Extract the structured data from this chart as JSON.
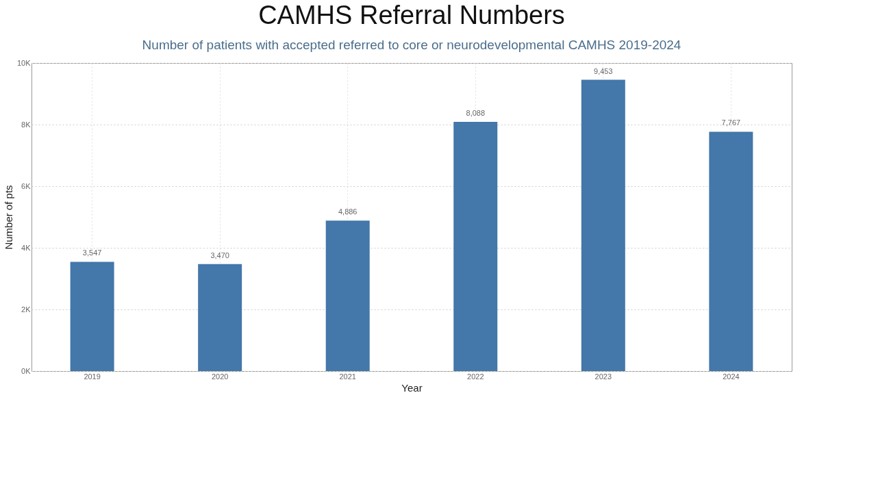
{
  "chart_data": {
    "type": "bar",
    "title": "CAMHS Referral Numbers",
    "subtitle": "Number of patients with accepted referred to core or neurodevelopmental CAMHS 2019-2024",
    "xlabel": "Year",
    "ylabel": "Number of pts",
    "categories": [
      "2019",
      "2020",
      "2021",
      "2022",
      "2023",
      "2024"
    ],
    "values": [
      3547,
      3470,
      4886,
      8088,
      9453,
      7767
    ],
    "value_labels": [
      "3,547",
      "3,470",
      "4,886",
      "8,088",
      "9,453",
      "7,767"
    ],
    "color": "#4477aa",
    "ylim": [
      0,
      10000
    ],
    "yticks": [
      {
        "value": 0,
        "label": "0K"
      },
      {
        "value": 2000,
        "label": "2K"
      },
      {
        "value": 4000,
        "label": "4K"
      },
      {
        "value": 6000,
        "label": "6K"
      },
      {
        "value": 8000,
        "label": "8K"
      },
      {
        "value": 10000,
        "label": "10K"
      }
    ],
    "grid": true
  }
}
